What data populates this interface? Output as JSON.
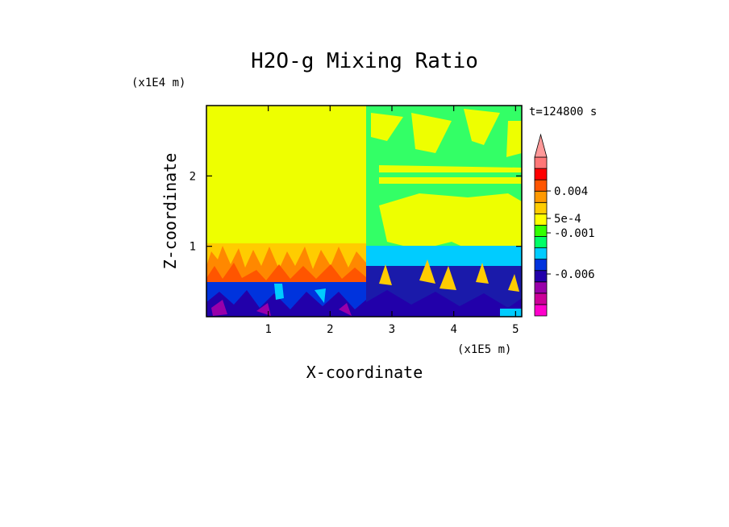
{
  "chart_data": {
    "type": "heatmap",
    "title": "H2O-g Mixing Ratio",
    "xlabel": "X-coordinate",
    "ylabel": "Z-coordinate",
    "x_scale_label": "(x1E5 m)",
    "y_scale_label": "(x1E4 m)",
    "time_label": "t=124800 s",
    "xlim": [
      0,
      5.1
    ],
    "ylim": [
      0,
      3.0
    ],
    "x_ticks": [
      1,
      2,
      3,
      4,
      5
    ],
    "x_tick_labels": [
      "1",
      "2",
      "3",
      "4",
      "5"
    ],
    "y_ticks": [
      1,
      2
    ],
    "y_tick_labels": [
      "1",
      "2"
    ],
    "colorbar": {
      "colors": [
        "#ff00cc",
        "#cc0099",
        "#9900aa",
        "#2200aa",
        "#0033dd",
        "#00ccff",
        "#00ff66",
        "#33ff00",
        "#ffff00",
        "#ffcc00",
        "#ff9900",
        "#ff5500",
        "#ff0000",
        "#ff7777"
      ],
      "labels": [
        {
          "text": "0.004",
          "level": 0.004
        },
        {
          "text": "5e-4",
          "level": 0.0005
        },
        {
          "text": "-0.001",
          "level": -0.001
        },
        {
          "text": "-0.006",
          "level": -0.006
        }
      ]
    },
    "regions": [
      {
        "name": "upper-left",
        "x": [
          0,
          2.57
        ],
        "z": [
          1.0,
          3.0
        ],
        "value": "near zero",
        "color": "#eeff00"
      },
      {
        "name": "lower-left-orange",
        "x": [
          0,
          2.57
        ],
        "z": [
          0.5,
          1.0
        ],
        "value": "positive",
        "color": "#ffcc00"
      },
      {
        "name": "lower-left-blue",
        "x": [
          0,
          2.57
        ],
        "z": [
          0,
          0.5
        ],
        "value": "negative",
        "color": "#0033dd"
      },
      {
        "name": "upper-right-green",
        "x": [
          2.57,
          5.1
        ],
        "z": [
          1.0,
          3.0
        ],
        "value": "slightly negative",
        "color": "#33ff66"
      },
      {
        "name": "lower-right-blue",
        "x": [
          2.57,
          5.1
        ],
        "z": [
          0,
          1.0
        ],
        "value": "negative",
        "color": "#1a1aaa"
      }
    ]
  }
}
